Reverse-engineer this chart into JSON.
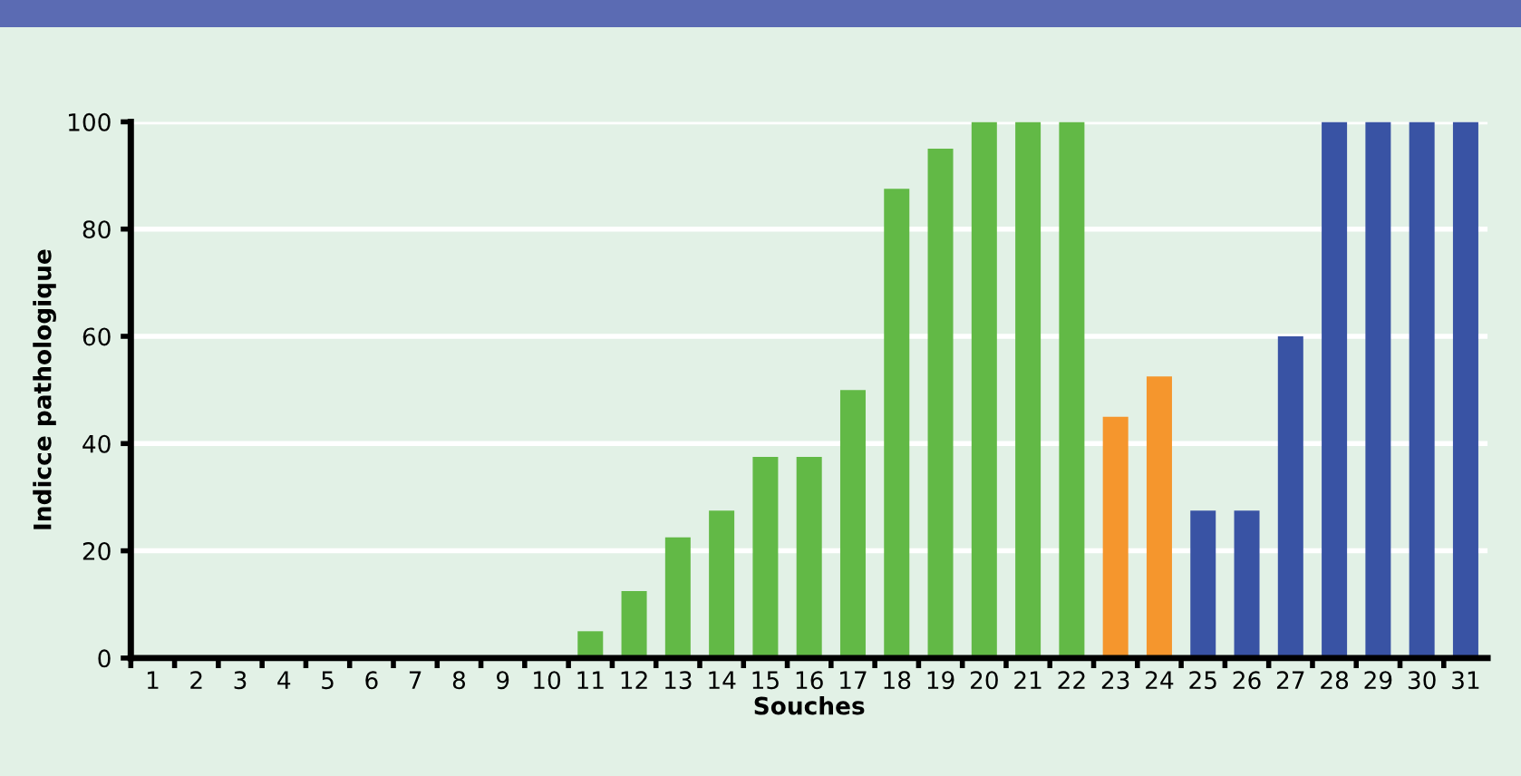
{
  "chart_data": {
    "type": "bar",
    "xlabel": "Souches",
    "ylabel": "Indicce pathologique",
    "categories": [
      "1",
      "2",
      "3",
      "4",
      "5",
      "6",
      "7",
      "8",
      "9",
      "10",
      "11",
      "12",
      "13",
      "14",
      "15",
      "16",
      "17",
      "18",
      "19",
      "20",
      "21",
      "22",
      "23",
      "24",
      "25",
      "26",
      "27",
      "28",
      "29",
      "30",
      "31"
    ],
    "values": [
      0,
      0,
      0,
      0,
      0,
      0,
      0,
      0,
      0,
      0,
      5,
      12.5,
      22.5,
      27.5,
      37.5,
      37.5,
      50,
      87.5,
      95,
      100,
      100,
      100,
      45,
      52.5,
      27.5,
      27.5,
      60,
      100,
      100,
      100,
      100
    ],
    "colors": [
      "#62b946",
      "#62b946",
      "#62b946",
      "#62b946",
      "#62b946",
      "#62b946",
      "#62b946",
      "#62b946",
      "#62b946",
      "#62b946",
      "#62b946",
      "#62b946",
      "#62b946",
      "#62b946",
      "#62b946",
      "#62b946",
      "#62b946",
      "#62b946",
      "#62b946",
      "#62b946",
      "#62b946",
      "#62b946",
      "#f5962d",
      "#f5962d",
      "#3953a4",
      "#3953a4",
      "#3953a4",
      "#3953a4",
      "#3953a4",
      "#3953a4",
      "#3953a4"
    ],
    "ylim": [
      0,
      100
    ],
    "yticks": [
      0,
      20,
      40,
      60,
      80,
      100
    ],
    "grid": "y"
  }
}
